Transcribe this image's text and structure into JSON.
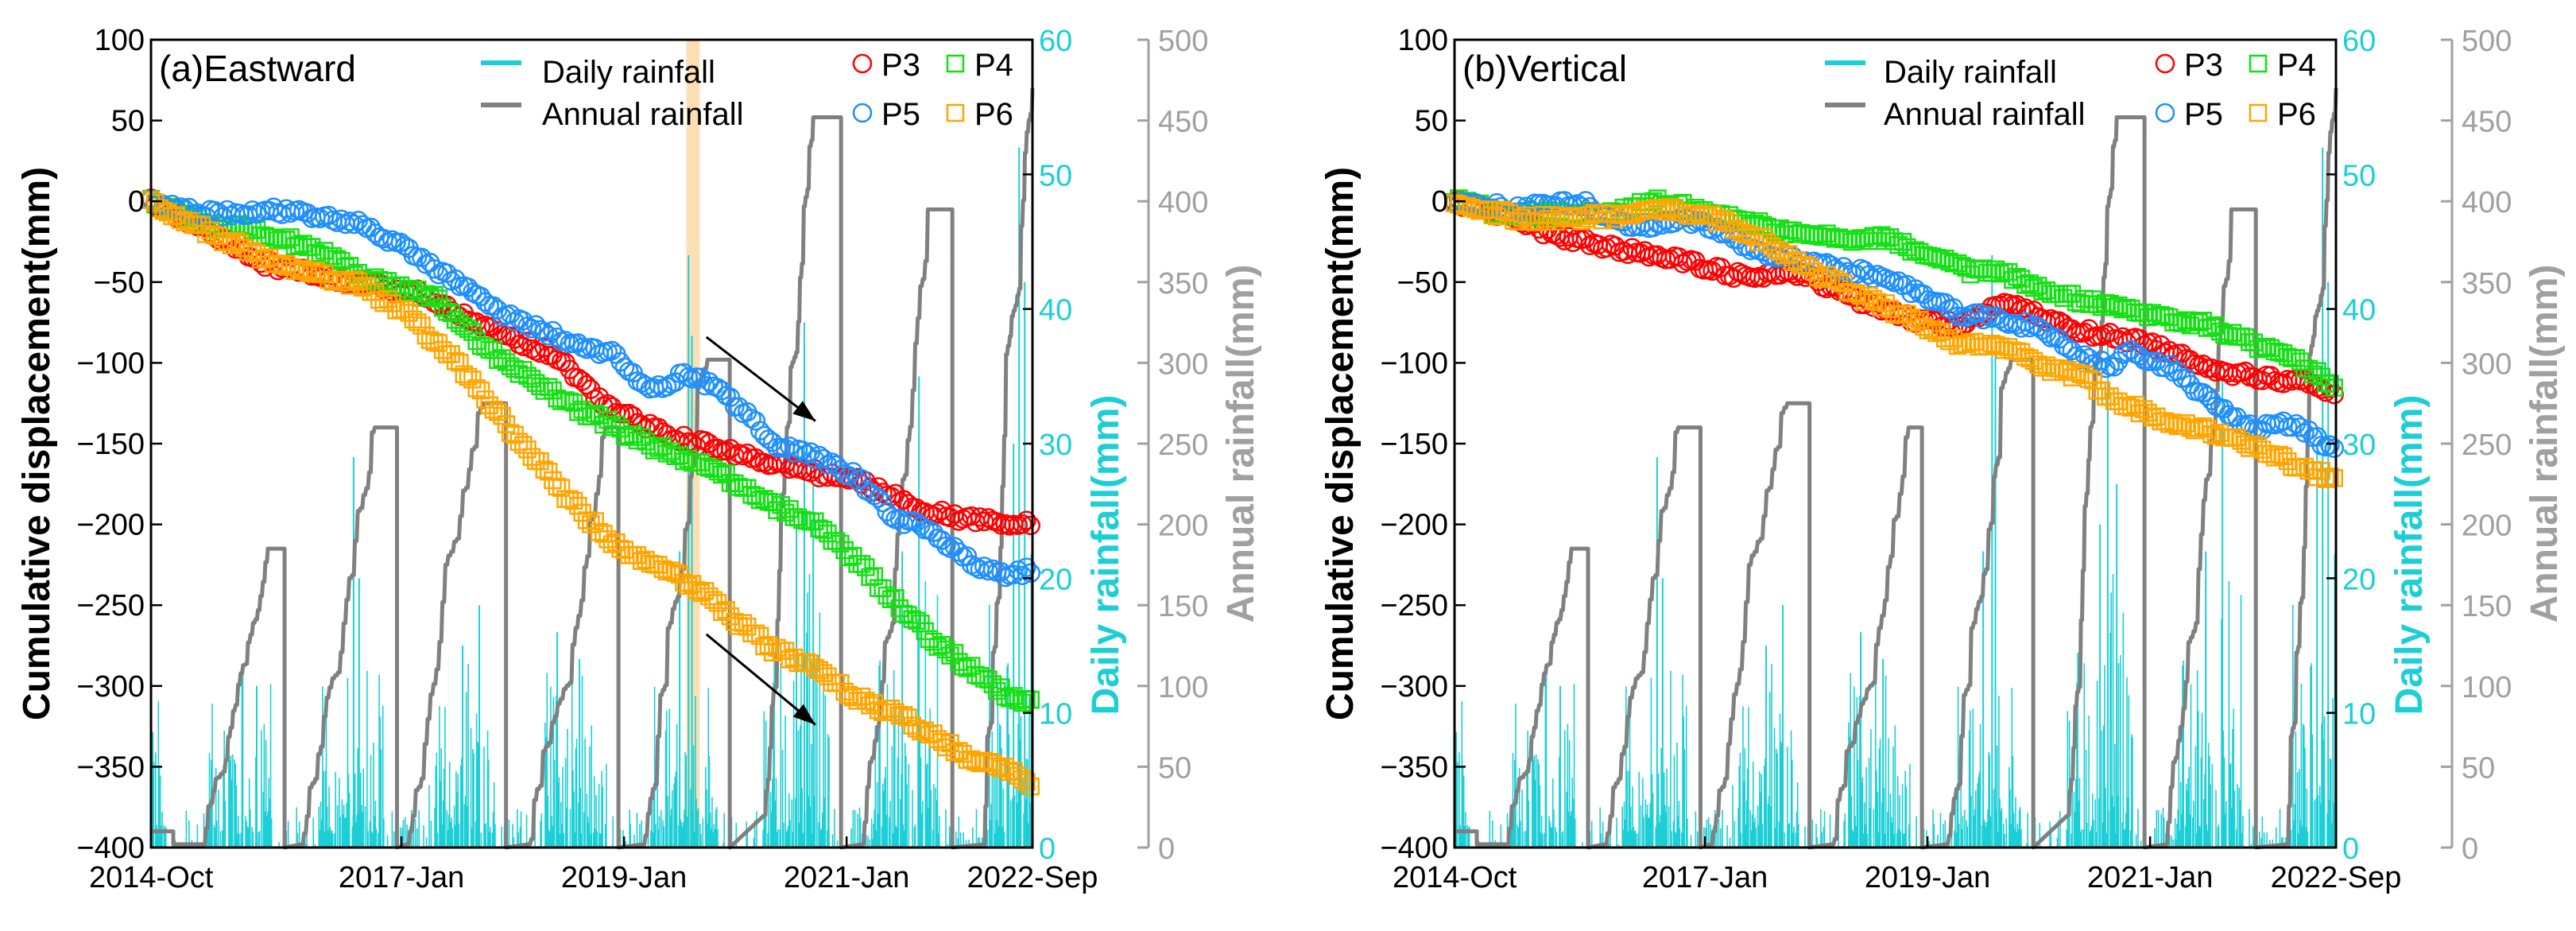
{
  "chart_data_common": {
    "time_axis": {
      "range": [
        2014.75,
        2022.67
      ],
      "ticks": [
        {
          "t": 2014.75,
          "label": "2014-Oct"
        },
        {
          "t": 2017.0,
          "label": "2017-Jan"
        },
        {
          "t": 2019.0,
          "label": "2019-Jan"
        },
        {
          "t": 2021.0,
          "label": "2021-Jan"
        },
        {
          "t": 2022.67,
          "label": "2022-Sep"
        }
      ]
    },
    "left_axis": {
      "label": "Cumulative displacement(mm)",
      "range": [
        -400,
        100
      ],
      "ticks": [
        -400,
        -350,
        -300,
        -250,
        -200,
        -150,
        -100,
        -50,
        0,
        50,
        100
      ]
    },
    "daily_axis": {
      "label": "Daily rainfall(mm)",
      "range": [
        0,
        60
      ],
      "ticks": [
        0,
        10,
        20,
        30,
        40,
        50,
        60
      ]
    },
    "annual_axis": {
      "label": "Annual rainfall(mm)",
      "range": [
        0,
        500
      ],
      "ticks": [
        0,
        50,
        100,
        150,
        200,
        250,
        300,
        350,
        400,
        450,
        500
      ]
    },
    "legend": {
      "daily": "Daily rainfall",
      "annual": "Annual rainfall"
    },
    "colors": {
      "daily": "#1ccfd6",
      "annual": "#808080",
      "gray_axis": "#a0a0a0",
      "band": "#fcd9a8",
      "P3": "#ff0000",
      "P4": "#14e014",
      "P5": "#1e8fff",
      "P6": "#ffa500"
    },
    "annual_rainfall": [
      {
        "rise_start": 2015.22,
        "plateau": 2015.8,
        "reset": 2015.95,
        "total": 185
      },
      {
        "rise_start": 2016.1,
        "plateau": 2016.76,
        "reset": 2016.96,
        "total": 260
      },
      {
        "rise_start": 2017.05,
        "plateau": 2017.74,
        "reset": 2017.94,
        "total": 275
      },
      {
        "rise_start": 2018.14,
        "plateau": 2018.83,
        "reset": 2018.95,
        "total": 260
      },
      {
        "rise_start": 2019.17,
        "plateau": 2019.75,
        "reset": 2019.95,
        "total": 302
      },
      {
        "rise_start": 2020.26,
        "plateau": 2020.7,
        "reset": 2020.95,
        "total": 452
      },
      {
        "rise_start": 2021.14,
        "plateau": 2021.73,
        "reset": 2021.95,
        "total": 395
      },
      {
        "rise_start": 2022.23,
        "plateau": 2022.67,
        "reset": null,
        "total": 470
      }
    ],
    "daily_rainfall_spikes": [
      [
        2015.45,
        8
      ],
      [
        2015.7,
        12
      ],
      [
        2016.57,
        29
      ],
      [
        2016.62,
        20
      ],
      [
        2017.55,
        15
      ],
      [
        2017.7,
        18
      ],
      [
        2018.4,
        16
      ],
      [
        2018.6,
        14
      ],
      [
        2019.58,
        44
      ],
      [
        2019.61,
        38
      ],
      [
        2019.5,
        22
      ],
      [
        2020.62,
        39
      ],
      [
        2020.7,
        27
      ],
      [
        2020.55,
        24
      ],
      [
        2021.65,
        35
      ],
      [
        2021.5,
        22
      ],
      [
        2022.55,
        52
      ],
      [
        2022.6,
        42
      ],
      [
        2022.5,
        30
      ]
    ]
  },
  "chart_data": [
    {
      "type": "scatter",
      "title": "(a)Eastward",
      "highlight_band": [
        2019.56,
        2019.68
      ],
      "arrows": [
        {
          "from": [
            2019.74,
            -84
          ],
          "to": [
            2020.72,
            -136
          ]
        },
        {
          "from": [
            2019.74,
            -268
          ],
          "to": [
            2020.72,
            -324
          ]
        }
      ],
      "series": [
        {
          "name": "P3",
          "marker": "circle",
          "points": [
            [
              2014.75,
              0
            ],
            [
              2015.3,
              -20
            ],
            [
              2015.74,
              -38
            ],
            [
              2016.5,
              -50
            ],
            [
              2017.2,
              -57
            ],
            [
              2017.8,
              -79
            ],
            [
              2018.4,
              -96
            ],
            [
              2018.8,
              -125
            ],
            [
              2019.4,
              -145
            ],
            [
              2019.97,
              -155
            ],
            [
              2020.55,
              -166
            ],
            [
              2021.1,
              -173
            ],
            [
              2021.7,
              -191
            ],
            [
              2022.0,
              -196
            ],
            [
              2022.67,
              -200
            ]
          ]
        },
        {
          "name": "P4",
          "marker": "square",
          "points": [
            [
              2014.75,
              0
            ],
            [
              2015.3,
              -15
            ],
            [
              2015.7,
              -18
            ],
            [
              2016.2,
              -29
            ],
            [
              2016.7,
              -48
            ],
            [
              2017.3,
              -60
            ],
            [
              2017.78,
              -92
            ],
            [
              2018.5,
              -125
            ],
            [
              2019.24,
              -151
            ],
            [
              2019.82,
              -166
            ],
            [
              2020.33,
              -188
            ],
            [
              2020.7,
              -199
            ],
            [
              2021.06,
              -221
            ],
            [
              2021.43,
              -247
            ],
            [
              2021.8,
              -273
            ],
            [
              2022.15,
              -291
            ],
            [
              2022.45,
              -306
            ],
            [
              2022.67,
              -310
            ]
          ]
        },
        {
          "name": "P5",
          "marker": "circle",
          "points": [
            [
              2014.75,
              0
            ],
            [
              2015.2,
              -8
            ],
            [
              2015.88,
              -5
            ],
            [
              2016.6,
              -14
            ],
            [
              2017.05,
              -29
            ],
            [
              2017.2,
              -37
            ],
            [
              2017.5,
              -51
            ],
            [
              2017.9,
              -70
            ],
            [
              2018.5,
              -86
            ],
            [
              2018.95,
              -96
            ],
            [
              2019.24,
              -118
            ],
            [
              2019.53,
              -107
            ],
            [
              2019.82,
              -114
            ],
            [
              2020.1,
              -132
            ],
            [
              2020.33,
              -149
            ],
            [
              2020.7,
              -158
            ],
            [
              2021.06,
              -169
            ],
            [
              2021.43,
              -195
            ],
            [
              2021.8,
              -206
            ],
            [
              2022.15,
              -225
            ],
            [
              2022.45,
              -232
            ],
            [
              2022.67,
              -228
            ]
          ]
        },
        {
          "name": "P6",
          "marker": "square",
          "points": [
            [
              2014.75,
              0
            ],
            [
              2015.3,
              -20
            ],
            [
              2015.9,
              -40
            ],
            [
              2016.6,
              -51
            ],
            [
              2017.05,
              -70
            ],
            [
              2017.5,
              -99
            ],
            [
              2017.78,
              -125
            ],
            [
              2018.15,
              -155
            ],
            [
              2018.5,
              -184
            ],
            [
              2018.95,
              -214
            ],
            [
              2019.38,
              -228
            ],
            [
              2019.68,
              -240
            ],
            [
              2019.97,
              -258
            ],
            [
              2020.33,
              -277
            ],
            [
              2020.7,
              -288
            ],
            [
              2021.06,
              -306
            ],
            [
              2021.43,
              -317
            ],
            [
              2021.8,
              -332
            ],
            [
              2022.15,
              -346
            ],
            [
              2022.5,
              -354
            ],
            [
              2022.67,
              -365
            ]
          ]
        }
      ]
    },
    {
      "type": "scatter",
      "title": "(b)Vertical",
      "highlight_band": null,
      "arrows": [],
      "series": [
        {
          "name": "P3",
          "marker": "circle",
          "points": [
            [
              2014.75,
              0
            ],
            [
              2015.3,
              -10
            ],
            [
              2015.6,
              -20
            ],
            [
              2016.2,
              -29
            ],
            [
              2016.8,
              -37
            ],
            [
              2017.4,
              -48
            ],
            [
              2017.83,
              -44
            ],
            [
              2018.42,
              -62
            ],
            [
              2018.87,
              -73
            ],
            [
              2019.3,
              -77
            ],
            [
              2019.69,
              -62
            ],
            [
              2020.06,
              -73
            ],
            [
              2020.43,
              -81
            ],
            [
              2021.0,
              -88
            ],
            [
              2021.4,
              -99
            ],
            [
              2021.77,
              -107
            ],
            [
              2022.14,
              -110
            ],
            [
              2022.5,
              -114
            ],
            [
              2022.67,
              -120
            ]
          ]
        },
        {
          "name": "P4",
          "marker": "square",
          "points": [
            [
              2014.75,
              0
            ],
            [
              2015.3,
              -8
            ],
            [
              2015.8,
              -8
            ],
            [
              2016.2,
              -7
            ],
            [
              2016.57,
              0
            ],
            [
              2016.94,
              -5
            ],
            [
              2017.4,
              -13
            ],
            [
              2017.83,
              -20
            ],
            [
              2018.27,
              -24
            ],
            [
              2018.57,
              -22
            ],
            [
              2019.0,
              -33
            ],
            [
              2019.39,
              -44
            ],
            [
              2019.69,
              -44
            ],
            [
              2020.06,
              -55
            ],
            [
              2020.43,
              -62
            ],
            [
              2020.8,
              -66
            ],
            [
              2021.17,
              -73
            ],
            [
              2021.55,
              -77
            ],
            [
              2021.92,
              -88
            ],
            [
              2022.3,
              -99
            ],
            [
              2022.5,
              -107
            ],
            [
              2022.67,
              -115
            ]
          ]
        },
        {
          "name": "P5",
          "marker": "circle",
          "points": [
            [
              2014.75,
              0
            ],
            [
              2015.3,
              -5
            ],
            [
              2015.45,
              -3
            ],
            [
              2015.9,
              -1
            ],
            [
              2016.35,
              -16
            ],
            [
              2016.8,
              -11
            ],
            [
              2017.1,
              -16
            ],
            [
              2017.4,
              -29
            ],
            [
              2017.83,
              -37
            ],
            [
              2018.42,
              -44
            ],
            [
              2018.87,
              -55
            ],
            [
              2019.3,
              -70
            ],
            [
              2019.69,
              -73
            ],
            [
              2020.06,
              -81
            ],
            [
              2020.36,
              -96
            ],
            [
              2020.65,
              -103
            ],
            [
              2020.8,
              -92
            ],
            [
              2021.17,
              -103
            ],
            [
              2021.55,
              -125
            ],
            [
              2021.92,
              -140
            ],
            [
              2022.3,
              -138
            ],
            [
              2022.5,
              -147
            ],
            [
              2022.67,
              -155
            ]
          ]
        },
        {
          "name": "P6",
          "marker": "square",
          "points": [
            [
              2014.75,
              0
            ],
            [
              2015.3,
              -10
            ],
            [
              2015.6,
              -11
            ],
            [
              2016.2,
              -9
            ],
            [
              2016.65,
              -5
            ],
            [
              2017.1,
              -11
            ],
            [
              2017.55,
              -25
            ],
            [
              2018.0,
              -44
            ],
            [
              2018.42,
              -59
            ],
            [
              2018.87,
              -73
            ],
            [
              2019.3,
              -88
            ],
            [
              2019.76,
              -92
            ],
            [
              2020.06,
              -103
            ],
            [
              2020.43,
              -110
            ],
            [
              2020.65,
              -121
            ],
            [
              2021.0,
              -132
            ],
            [
              2021.4,
              -140
            ],
            [
              2021.77,
              -147
            ],
            [
              2022.14,
              -158
            ],
            [
              2022.5,
              -169
            ],
            [
              2022.67,
              -170
            ]
          ]
        }
      ]
    }
  ]
}
